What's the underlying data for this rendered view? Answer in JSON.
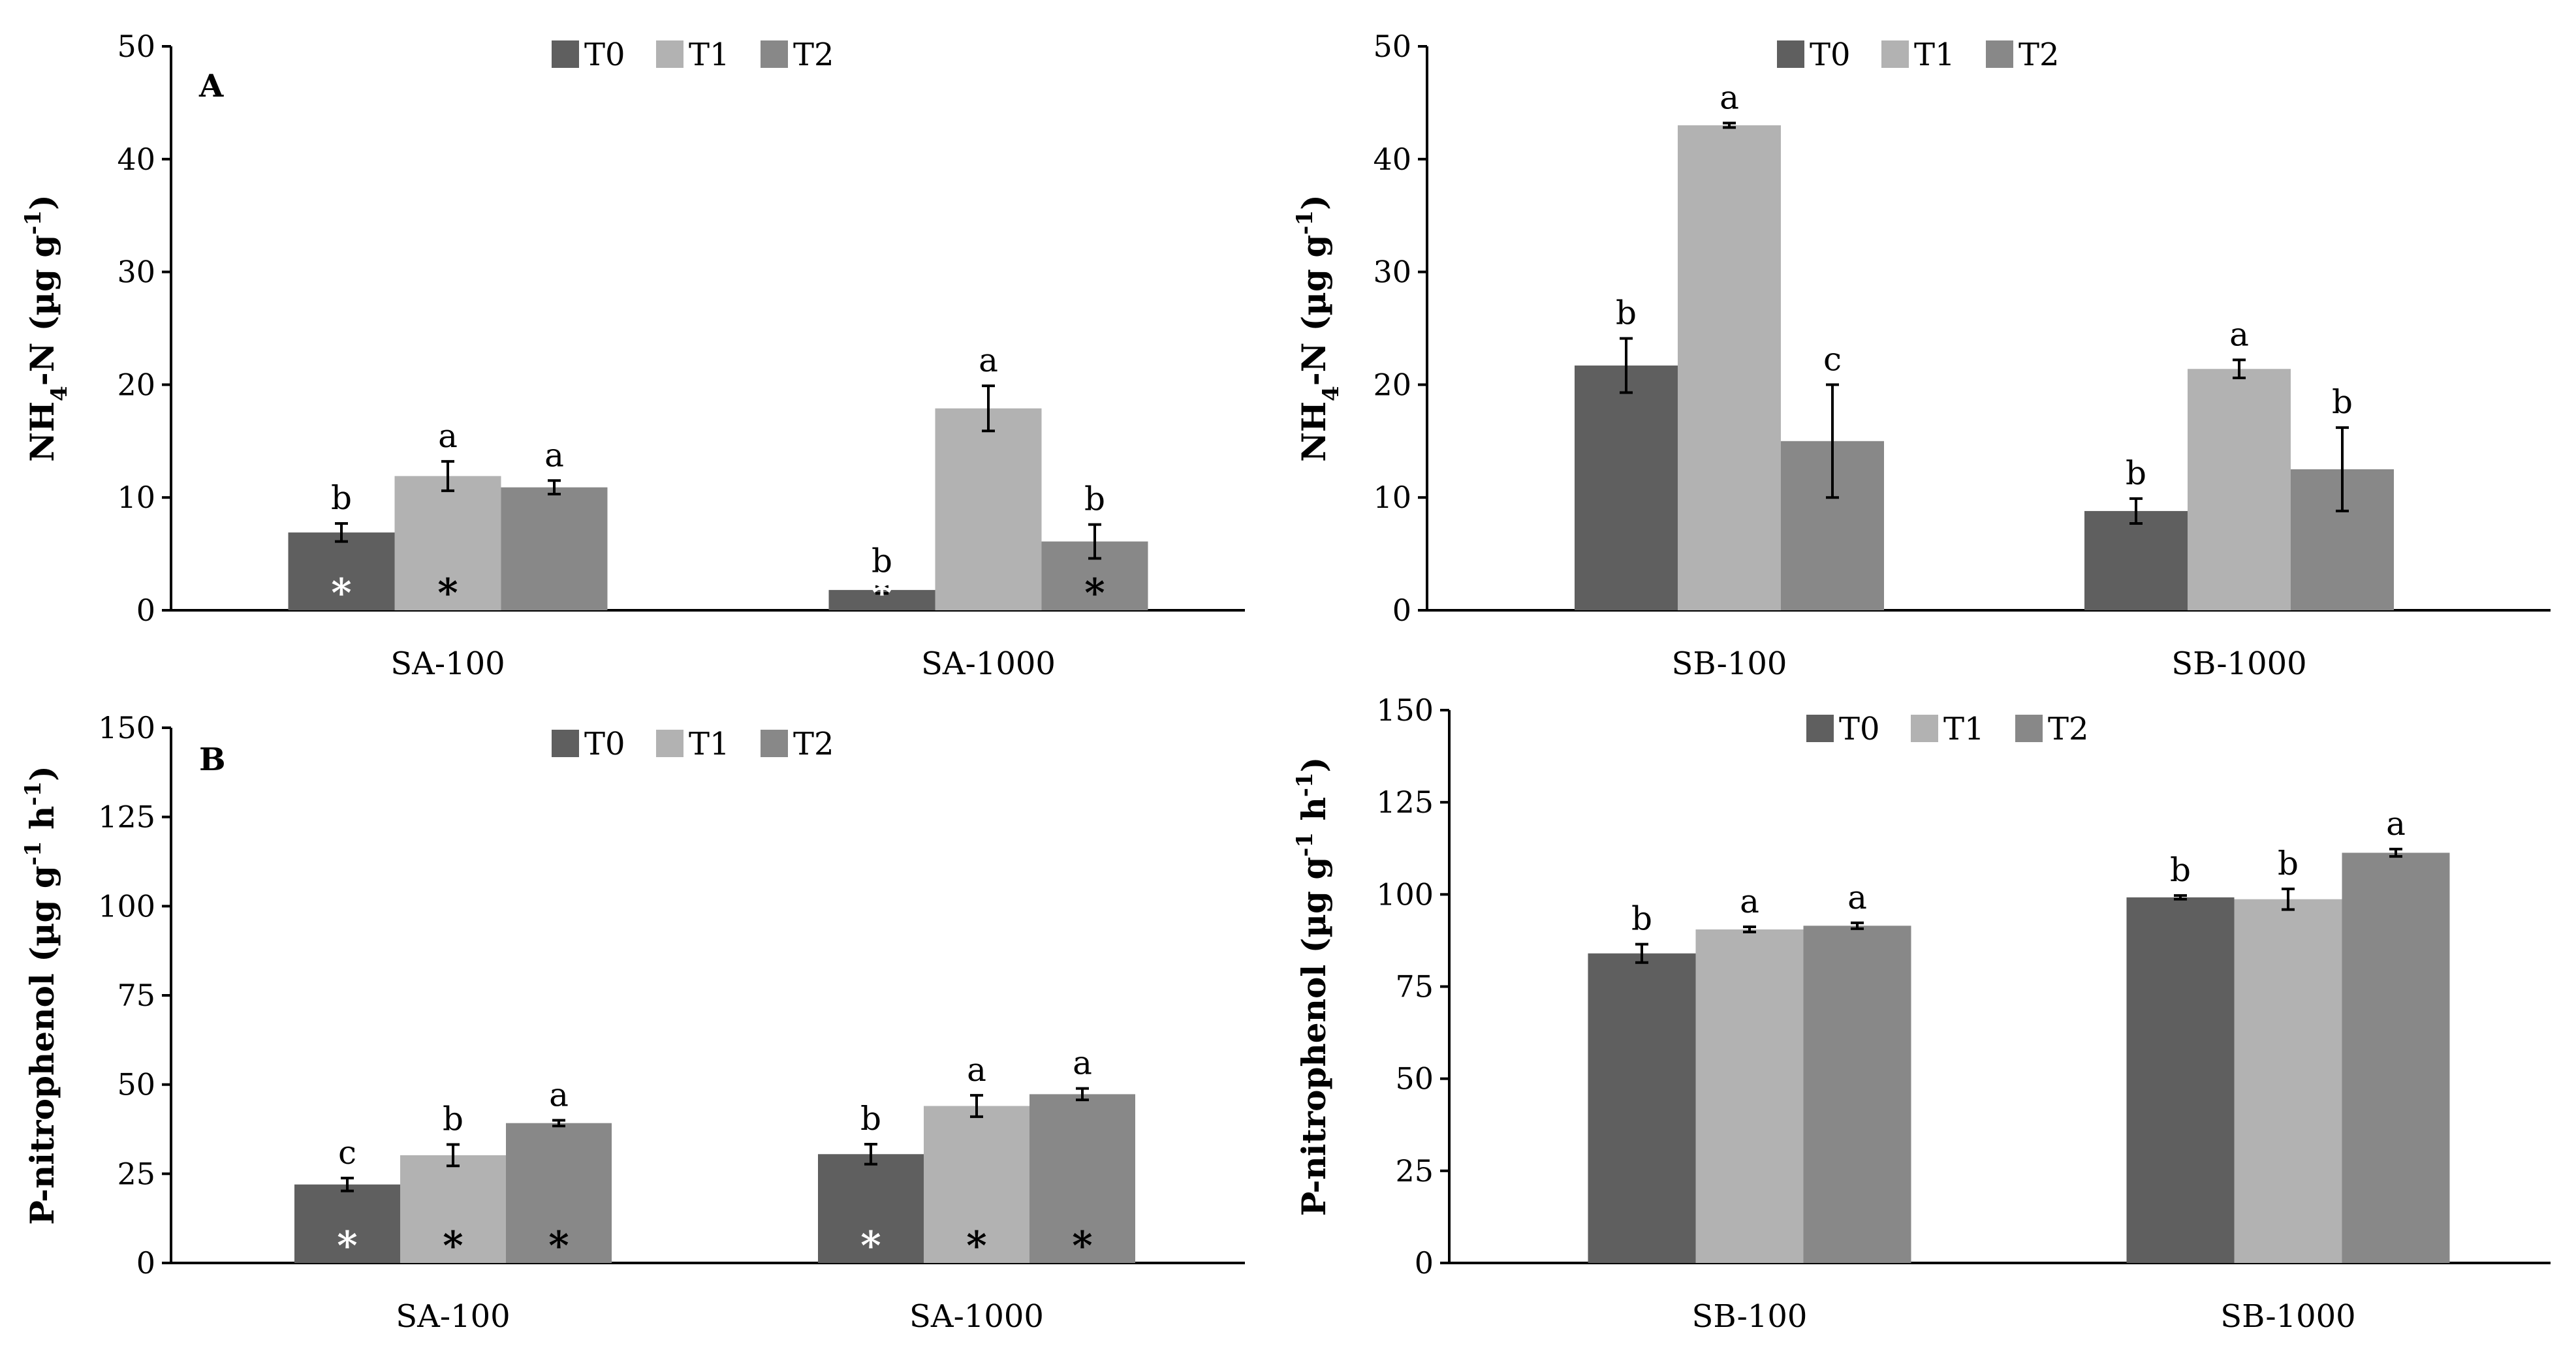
{
  "colors": {
    "T0": "#5f5f5f",
    "T1": "#b2b2b2",
    "T2": "#888888",
    "axis": "#000000",
    "error_bar": "#000000"
  },
  "chart_data": [
    {
      "type": "bar",
      "panel": "A",
      "ylabel": "NH4-N (µg g-1)",
      "ylabel_main": "NH",
      "ylabel_sub": "4",
      "ylabel_mid": "-N (µg g",
      "ylabel_sup": "-1",
      "ylabel_end": ")",
      "ylim": [
        0,
        50
      ],
      "yticks": [
        0,
        10,
        20,
        30,
        40,
        50
      ],
      "categories": [
        "SA-100",
        "SA-1000"
      ],
      "series": [
        {
          "name": "T0",
          "values": [
            6.9,
            1.8
          ],
          "errors": [
            0.8,
            0.3
          ],
          "letters": [
            "b",
            "b"
          ],
          "stars": [
            true,
            true
          ],
          "star_colors": [
            "white",
            "white"
          ]
        },
        {
          "name": "T1",
          "values": [
            11.9,
            17.9
          ],
          "errors": [
            1.3,
            2.0
          ],
          "letters": [
            "a",
            "a"
          ],
          "stars": [
            true,
            false
          ],
          "star_colors": [
            "black",
            "black"
          ]
        },
        {
          "name": "T2",
          "values": [
            10.9,
            6.1
          ],
          "errors": [
            0.6,
            1.5
          ],
          "letters": [
            "a",
            "b"
          ],
          "stars": [
            false,
            true
          ],
          "star_colors": [
            "black",
            "black"
          ]
        }
      ],
      "legend": [
        "T0",
        "T1",
        "T2"
      ],
      "legend_position": "top-center"
    },
    {
      "type": "bar",
      "panel": "",
      "ylabel": "NH4-N (µg g-1)",
      "ylabel_main": "NH",
      "ylabel_sub": "4",
      "ylabel_mid": "-N (µg g",
      "ylabel_sup": "-1",
      "ylabel_end": ")",
      "ylim": [
        0,
        50
      ],
      "yticks": [
        0,
        10,
        20,
        30,
        40,
        50
      ],
      "categories": [
        "SB-100",
        "SB-1000"
      ],
      "series": [
        {
          "name": "T0",
          "values": [
            21.7,
            8.8
          ],
          "errors": [
            2.4,
            1.1
          ],
          "letters": [
            "b",
            "b"
          ],
          "stars": [
            false,
            false
          ],
          "star_colors": [
            "black",
            "black"
          ]
        },
        {
          "name": "T1",
          "values": [
            43.0,
            21.4
          ],
          "errors": [
            0.2,
            0.8
          ],
          "letters": [
            "a",
            "a"
          ],
          "stars": [
            false,
            false
          ],
          "star_colors": [
            "black",
            "black"
          ]
        },
        {
          "name": "T2",
          "values": [
            15.0,
            12.5
          ],
          "errors": [
            5.0,
            3.7
          ],
          "letters": [
            "c",
            "b"
          ],
          "stars": [
            false,
            false
          ],
          "star_colors": [
            "black",
            "black"
          ]
        }
      ],
      "legend": [
        "T0",
        "T1",
        "T2"
      ],
      "legend_position": "top-center"
    },
    {
      "type": "bar",
      "panel": "B",
      "ylabel": "P-nitrophenol (µg g-1 h-1)",
      "ylabel_main": "P-nitrophenol  (µg g",
      "ylabel_sup": "-1",
      "ylabel_mid2": " h",
      "ylabel_sup2": "-1",
      "ylabel_end": ")",
      "ylim": [
        0,
        150
      ],
      "yticks": [
        0,
        25,
        50,
        75,
        100,
        125,
        150
      ],
      "categories": [
        "SA-100",
        "SA-1000"
      ],
      "series": [
        {
          "name": "T0",
          "values": [
            22.0,
            30.5
          ],
          "errors": [
            1.8,
            2.8
          ],
          "letters": [
            "c",
            "b"
          ],
          "stars": [
            true,
            true
          ],
          "star_colors": [
            "white",
            "white"
          ]
        },
        {
          "name": "T1",
          "values": [
            30.2,
            44.0
          ],
          "errors": [
            3.0,
            3.0
          ],
          "letters": [
            "b",
            "a"
          ],
          "stars": [
            true,
            true
          ],
          "star_colors": [
            "black",
            "black"
          ]
        },
        {
          "name": "T2",
          "values": [
            39.2,
            47.3
          ],
          "errors": [
            0.8,
            1.6
          ],
          "letters": [
            "a",
            "a"
          ],
          "stars": [
            true,
            true
          ],
          "star_colors": [
            "black",
            "black"
          ]
        }
      ],
      "legend": [
        "T0",
        "T1",
        "T2"
      ],
      "legend_position": "top-center"
    },
    {
      "type": "bar",
      "panel": "",
      "ylabel": "P-nitrophenol (µg g-1 h-1)",
      "ylabel_main": "P-nitrophenol  (µg g",
      "ylabel_sup": "-1",
      "ylabel_mid2": " h",
      "ylabel_sup2": "-1",
      "ylabel_end": ")",
      "ylim": [
        0,
        150
      ],
      "yticks": [
        0,
        25,
        50,
        75,
        100,
        125,
        150
      ],
      "categories": [
        "SB-100",
        "SB-1000"
      ],
      "series": [
        {
          "name": "T0",
          "values": [
            84.0,
            99.2
          ],
          "errors": [
            2.5,
            0.5
          ],
          "letters": [
            "b",
            "b"
          ],
          "stars": [
            false,
            false
          ],
          "star_colors": [
            "black",
            "black"
          ]
        },
        {
          "name": "T1",
          "values": [
            90.5,
            98.7
          ],
          "errors": [
            0.7,
            2.8
          ],
          "letters": [
            "a",
            "b"
          ],
          "stars": [
            false,
            false
          ],
          "star_colors": [
            "black",
            "black"
          ]
        },
        {
          "name": "T2",
          "values": [
            91.5,
            111.3
          ],
          "errors": [
            0.8,
            1.0
          ],
          "letters": [
            "a",
            "a"
          ],
          "stars": [
            false,
            false
          ],
          "star_colors": [
            "black",
            "black"
          ]
        }
      ],
      "legend": [
        "T0",
        "T1",
        "T2"
      ],
      "legend_position": "top-center"
    }
  ]
}
